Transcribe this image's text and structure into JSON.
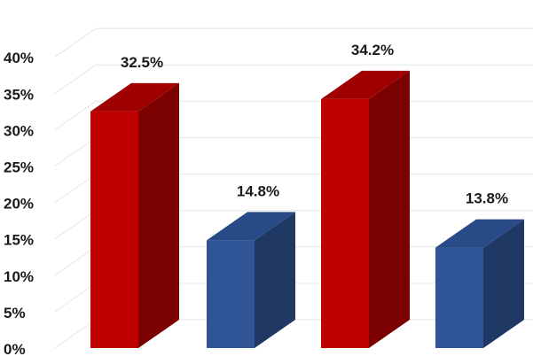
{
  "chart_data": {
    "type": "bar",
    "categories": [
      "",
      "",
      "",
      ""
    ],
    "values": [
      32.5,
      14.8,
      34.2,
      13.8
    ],
    "data_labels": [
      "32.5%",
      "14.8%",
      "34.2%",
      "13.8%"
    ],
    "bar_colors": [
      "red",
      "blue",
      "red",
      "blue"
    ],
    "ylim": [
      0,
      40
    ],
    "yticks": [
      {
        "value": 0,
        "label": "0%"
      },
      {
        "value": 5,
        "label": "5%"
      },
      {
        "value": 10,
        "label": "10%"
      },
      {
        "value": 15,
        "label": "15%"
      },
      {
        "value": 20,
        "label": "20%"
      },
      {
        "value": 25,
        "label": "25%"
      },
      {
        "value": 30,
        "label": "30%"
      },
      {
        "value": 35,
        "label": "35%"
      },
      {
        "value": 40,
        "label": "40%"
      }
    ],
    "grid": true,
    "style": "3d-column",
    "title": "",
    "xlabel": "",
    "ylabel": ""
  },
  "colors": {
    "red_front": "#c00000",
    "red_side": "#7b0000",
    "red_top": "#a00000",
    "blue_front": "#2f5597",
    "blue_side": "#1f3864",
    "blue_top": "#284a86",
    "grid": "#e6e6e6"
  }
}
